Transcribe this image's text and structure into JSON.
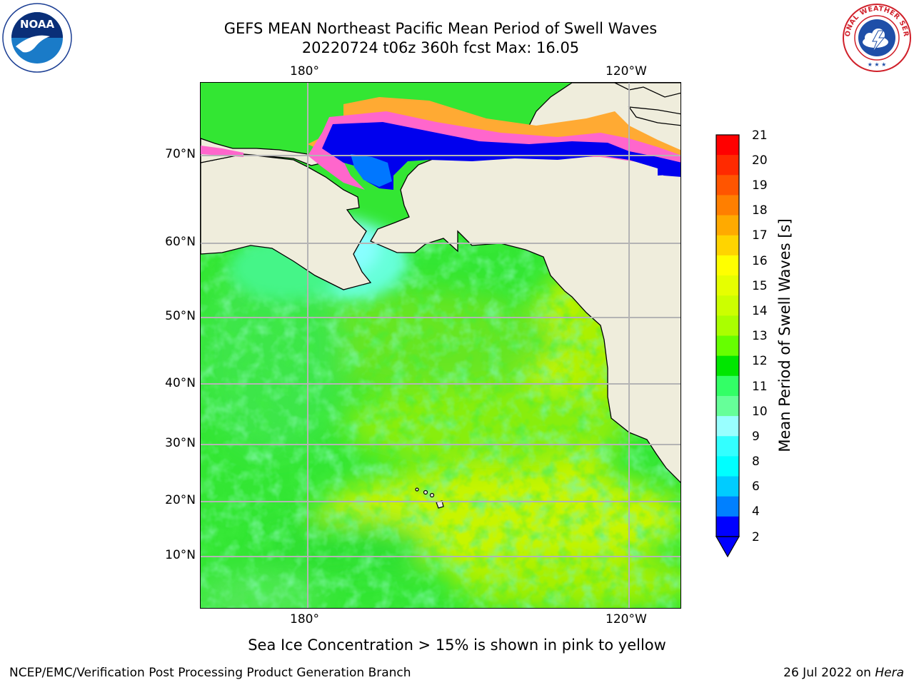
{
  "title": {
    "line1": "GEFS MEAN Northeast Pacific Mean Period of Swell Waves",
    "line2": "20220724 t06z 360h fcst   Max: 16.05"
  },
  "logos": {
    "left": {
      "icon": "noaa-logo",
      "text": "NOAA"
    },
    "right": {
      "icon": "national-weather-service-logo",
      "text": "NATIONAL WEATHER SERVICE"
    }
  },
  "map": {
    "lon_labels_top": [
      "180°",
      "120°W"
    ],
    "lon_labels_bottom": [
      "180°",
      "120°W"
    ],
    "lat_labels": [
      "70°N",
      "60°N",
      "50°N",
      "40°N",
      "30°N",
      "20°N",
      "10°N"
    ],
    "colors": {
      "land": "#efeddc",
      "ocean_base": "#33e633",
      "grid": "#b4b4b4"
    }
  },
  "colorbar": {
    "label": "Mean Period of Swell Waves [s]",
    "ticks": [
      "21",
      "20",
      "19",
      "18",
      "17",
      "16",
      "15",
      "14",
      "13",
      "12",
      "11",
      "10",
      "9",
      "8",
      "6",
      "4",
      "2"
    ],
    "colors_top_to_bottom": [
      "#ff0000",
      "#ff2a00",
      "#ff5500",
      "#ff7f00",
      "#ffaa00",
      "#ffd400",
      "#ffff00",
      "#e6ff00",
      "#ccff00",
      "#aaff00",
      "#66ff00",
      "#00e600",
      "#33ff66",
      "#66ff99",
      "#99ffff",
      "#33ffff",
      "#00ffff",
      "#00ccff",
      "#0080ff",
      "#0000ff"
    ]
  },
  "note": "Sea Ice Concentration > 15% is shown in pink to yellow",
  "footer": {
    "left": "NCEP/EMC/Verification Post Processing Product Generation Branch",
    "right_date": "26 Jul 2022 on ",
    "right_machine": "Hera"
  }
}
